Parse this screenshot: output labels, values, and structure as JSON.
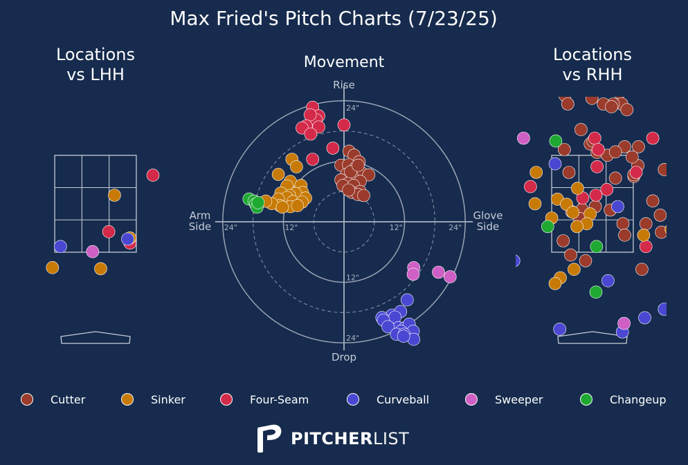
{
  "title": "Max Fried's Pitch Charts (7/23/25)",
  "colors": {
    "background": "#162b4d",
    "grid": "#c5ccd8",
    "Cutter": "#9a3b2c",
    "Sinker": "#c77a06",
    "Four-Seam": "#d42a4a",
    "Curveball": "#4a47d3",
    "Sweeper": "#cf5fc4",
    "Changeup": "#1fa832"
  },
  "legend": [
    {
      "name": "Cutter"
    },
    {
      "name": "Sinker"
    },
    {
      "name": "Four-Seam"
    },
    {
      "name": "Curveball"
    },
    {
      "name": "Sweeper"
    },
    {
      "name": "Changeup"
    }
  ],
  "brand": {
    "bold": "PITCHER",
    "light": "LIST"
  },
  "chart_data": [
    {
      "type": "scatter",
      "title": "Locations\nvs LHH",
      "x_unit": "ft",
      "y_unit": "ft",
      "xlim": [
        -1.45,
        1.45
      ],
      "ylim": [
        -0.45,
        4.85
      ],
      "grid": true,
      "strike_zone": {
        "x": [
          -0.71,
          0.71
        ],
        "y": [
          1.6,
          3.3
        ],
        "divisions": 3
      },
      "series": [
        {
          "name": "Four-Seam",
          "points": [
            [
              1.0,
              2.95
            ],
            [
              0.23,
              1.96
            ],
            [
              0.6,
              1.76
            ]
          ]
        },
        {
          "name": "Sinker",
          "points": [
            [
              0.33,
              2.6
            ],
            [
              0.6,
              1.85
            ],
            [
              -0.75,
              1.33
            ],
            [
              0.09,
              1.31
            ]
          ]
        },
        {
          "name": "Curveball",
          "points": [
            [
              -0.61,
              1.7
            ],
            [
              0.56,
              1.83
            ]
          ]
        },
        {
          "name": "Sweeper",
          "points": [
            [
              -0.05,
              1.61
            ]
          ]
        }
      ]
    },
    {
      "type": "scatter",
      "title": "Movement",
      "x_unit": "in",
      "y_unit": "in",
      "xlim": [
        -30,
        30
      ],
      "ylim": [
        -30,
        30
      ],
      "grid": true,
      "axis_labels": {
        "top": "Rise",
        "bottom": "Drop",
        "left": "Arm\nSide",
        "right": "Glove\nSide"
      },
      "ring_labels": [
        "12\"",
        "24\""
      ],
      "series": [
        {
          "name": "Four-Seam",
          "points": [
            [
              -6.2,
              22.7
            ],
            [
              -5.0,
              21.0
            ],
            [
              -5.5,
              20.2
            ],
            [
              -6.7,
              21.2
            ],
            [
              -7.5,
              19.0
            ],
            [
              -8.3,
              18.6
            ],
            [
              -5.0,
              18.8
            ],
            [
              -6.6,
              17.4
            ],
            [
              -6.2,
              12.4
            ],
            [
              -2.2,
              14.6
            ],
            [
              0,
              19.2
            ]
          ]
        },
        {
          "name": "Cutter",
          "points": [
            [
              1.0,
              14.0
            ],
            [
              2.0,
              13.2
            ],
            [
              3.0,
              11.9
            ],
            [
              -0.6,
              11.2
            ],
            [
              0.9,
              11.3
            ],
            [
              2.3,
              10.7
            ],
            [
              3.5,
              9.7
            ],
            [
              4.9,
              9.3
            ],
            [
              0.5,
              9.4
            ],
            [
              1.6,
              9.0
            ],
            [
              -0.6,
              8.3
            ],
            [
              3.2,
              8.0
            ],
            [
              0.8,
              7.6
            ],
            [
              -0.2,
              7.2
            ],
            [
              1.9,
              7.2
            ],
            [
              3.2,
              6.0
            ],
            [
              1.6,
              5.8
            ],
            [
              2.8,
              5.4
            ],
            [
              0.9,
              6.3
            ],
            [
              3.9,
              5.2
            ],
            [
              1.3,
              9.9
            ],
            [
              2.8,
              11.2
            ]
          ]
        },
        {
          "name": "Sinker",
          "points": [
            [
              -10.3,
              12.4
            ],
            [
              -9.4,
              10.9
            ],
            [
              -13.0,
              9.4
            ],
            [
              -10.6,
              8.0
            ],
            [
              -11.3,
              7.1
            ],
            [
              -8.5,
              7.2
            ],
            [
              -8.2,
              5.8
            ],
            [
              -9.6,
              5.6
            ],
            [
              -10.8,
              5.2
            ],
            [
              -12.5,
              5.7
            ],
            [
              -7.6,
              4.7
            ],
            [
              -11.3,
              4.8
            ],
            [
              -13.0,
              4.5
            ],
            [
              -10.1,
              4.0
            ],
            [
              -12.7,
              3.2
            ],
            [
              -14.3,
              3.6
            ],
            [
              -15.5,
              4.1
            ],
            [
              -8.3,
              3.9
            ],
            [
              -10.6,
              3.0
            ],
            [
              -12.2,
              2.9
            ],
            [
              -9.2,
              3.2
            ]
          ]
        },
        {
          "name": "Changeup",
          "points": [
            [
              -18.8,
              4.5
            ],
            [
              -17.8,
              4.1
            ],
            [
              -17.5,
              3.5
            ],
            [
              -17.2,
              2.9
            ],
            [
              -17.0,
              3.8
            ]
          ]
        },
        {
          "name": "Curveball",
          "points": [
            [
              12.5,
              -15.5
            ],
            [
              9.5,
              -18.5
            ],
            [
              11.2,
              -17.8
            ],
            [
              7.5,
              -19.0
            ],
            [
              10.1,
              -18.9
            ],
            [
              7.8,
              -19.5
            ],
            [
              10.8,
              -21.0
            ],
            [
              12.1,
              -21.0
            ],
            [
              12.9,
              -20.3
            ],
            [
              8.7,
              -20.8
            ],
            [
              11.3,
              -21.7
            ],
            [
              10.4,
              -22.3
            ],
            [
              13.7,
              -21.7
            ],
            [
              11.9,
              -22.3
            ],
            [
              13.8,
              -23.3
            ],
            [
              11.8,
              -22.7
            ]
          ]
        },
        {
          "name": "Sweeper",
          "points": [
            [
              13.8,
              -9.1
            ],
            [
              13.7,
              -10.4
            ],
            [
              18.7,
              -10.0
            ],
            [
              21.0,
              -10.9
            ]
          ]
        }
      ]
    },
    {
      "type": "scatter",
      "title": "Locations\nvs RHH",
      "x_unit": "ft",
      "y_unit": "ft",
      "xlim": [
        -1.45,
        1.45
      ],
      "ylim": [
        -0.45,
        4.85
      ],
      "grid": true,
      "strike_zone": {
        "x": [
          -0.71,
          0.71
        ],
        "y": [
          1.6,
          3.3
        ],
        "divisions": 3
      },
      "series": [
        {
          "name": "Cutter",
          "points": [
            [
              -0.64,
              4.6
            ],
            [
              -0.31,
              4.6
            ],
            [
              -0.48,
              4.35
            ],
            [
              -0.43,
              4.2
            ],
            [
              -0.01,
              4.3
            ],
            [
              0.23,
              4.5
            ],
            [
              0.47,
              4.4
            ],
            [
              0.51,
              4.2
            ],
            [
              0.36,
              4.2
            ],
            [
              0.19,
              4.2
            ],
            [
              0.6,
              4.1
            ],
            [
              0.33,
              4.15
            ],
            [
              -0.04,
              3.5
            ],
            [
              -0.2,
              3.75
            ],
            [
              0.01,
              3.55
            ],
            [
              0.08,
              3.35
            ],
            [
              0.26,
              3.3
            ],
            [
              0.56,
              3.45
            ],
            [
              0.4,
              3.36
            ],
            [
              -0.49,
              3.4
            ],
            [
              -0.41,
              3.0
            ],
            [
              0.4,
              2.9
            ],
            [
              0.8,
              3.45
            ],
            [
              0.79,
              3.12
            ],
            [
              0.69,
              3.27
            ],
            [
              0.72,
              2.93
            ],
            [
              1.25,
              3.05
            ],
            [
              1.05,
              2.5
            ],
            [
              1.18,
              2.25
            ],
            [
              0.93,
              2.1
            ],
            [
              0.53,
              2.1
            ],
            [
              0.72,
              2.96
            ],
            [
              -0.18,
              2.35
            ],
            [
              -0.36,
              2.31
            ],
            [
              -0.22,
              2.19
            ],
            [
              0.05,
              2.4
            ],
            [
              0.31,
              2.34
            ],
            [
              0.56,
              1.9
            ],
            [
              1.2,
              1.95
            ],
            [
              -0.38,
              1.55
            ],
            [
              -0.51,
              1.8
            ],
            [
              -0.12,
              1.45
            ],
            [
              0.86,
              1.3
            ]
          ]
        },
        {
          "name": "Four-Seam",
          "points": [
            [
              -0.06,
              4.5
            ],
            [
              0.04,
              3.6
            ],
            [
              1.05,
              3.6
            ],
            [
              0.1,
              3.4
            ],
            [
              0.08,
              3.1
            ],
            [
              0.76,
              3.0
            ],
            [
              -1.08,
              2.75
            ],
            [
              -0.17,
              2.55
            ],
            [
              0.25,
              2.7
            ],
            [
              0.06,
              2.6
            ],
            [
              0.93,
              1.7
            ],
            [
              1.4,
              2.5
            ]
          ]
        },
        {
          "name": "Sinker",
          "points": [
            [
              -0.98,
              3.0
            ],
            [
              -1.0,
              2.45
            ],
            [
              -0.61,
              2.53
            ],
            [
              -0.26,
              2.72
            ],
            [
              -0.45,
              2.44
            ],
            [
              -0.04,
              2.27
            ],
            [
              -0.34,
              2.3
            ],
            [
              -0.71,
              2.2
            ],
            [
              -0.1,
              2.1
            ],
            [
              -0.27,
              2.05
            ],
            [
              -0.32,
              1.3
            ],
            [
              -0.56,
              1.15
            ],
            [
              -0.65,
              1.05
            ],
            [
              0.89,
              1.9
            ],
            [
              1.37,
              2.0
            ]
          ]
        },
        {
          "name": "Curveball",
          "points": [
            [
              -0.65,
              3.15
            ],
            [
              0.44,
              2.4
            ],
            [
              0.27,
              1.1
            ],
            [
              -1.37,
              1.45
            ],
            [
              0.91,
              0.45
            ],
            [
              0.52,
              0.2
            ],
            [
              -0.57,
              0.25
            ],
            [
              1.25,
              0.6
            ]
          ]
        },
        {
          "name": "Changeup",
          "points": [
            [
              -0.64,
              3.55
            ],
            [
              -0.78,
              2.05
            ],
            [
              0.07,
              1.7
            ],
            [
              0.06,
              0.9
            ]
          ]
        },
        {
          "name": "Sweeper",
          "points": [
            [
              -1.08,
              4.5
            ],
            [
              -1.2,
              3.6
            ],
            [
              0.55,
              0.35
            ]
          ]
        }
      ]
    }
  ]
}
